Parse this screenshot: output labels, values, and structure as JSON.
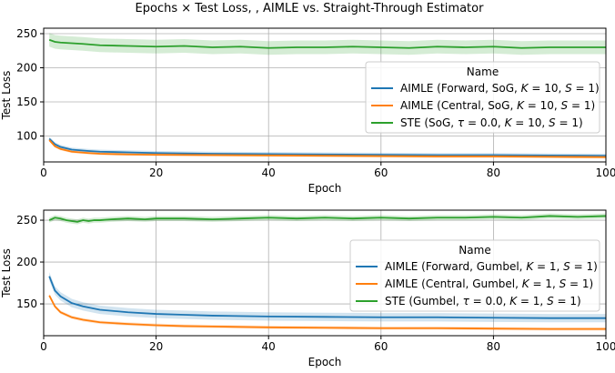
{
  "figure": {
    "title": "Epochs × Test Loss, , AIMLE vs. Straight-Through Estimator"
  },
  "colors": {
    "aimle_forward": "#1f77b4",
    "aimle_central": "#ff7f0e",
    "ste": "#2ca02c",
    "grid": "#b0b0b0"
  },
  "chart_data": [
    {
      "type": "line",
      "xlabel": "Epoch",
      "ylabel": "Test Loss",
      "xlim": [
        0,
        100
      ],
      "ylim": [
        62,
        258
      ],
      "xticks": [
        0,
        20,
        40,
        60,
        80,
        100
      ],
      "yticks": [
        100,
        150,
        200,
        250
      ],
      "grid": true,
      "legend": {
        "title": "Name",
        "placement": "center-right"
      },
      "series": [
        {
          "name": "AIMLE (Forward, SoG, K = 10, S = 1)",
          "x": [
            1,
            2,
            3,
            5,
            8,
            10,
            15,
            20,
            30,
            40,
            50,
            60,
            70,
            80,
            90,
            100
          ],
          "y": [
            96,
            88,
            84,
            80,
            78,
            77,
            76,
            75,
            74,
            73.5,
            73,
            72.5,
            72,
            72,
            71.5,
            71
          ],
          "band": 3
        },
        {
          "name": "AIMLE (Central, SoG, K = 10, S = 1)",
          "x": [
            1,
            2,
            3,
            5,
            8,
            10,
            15,
            20,
            30,
            40,
            50,
            60,
            70,
            80,
            90,
            100
          ],
          "y": [
            94,
            85,
            81,
            77,
            75,
            74,
            73,
            72.5,
            72,
            71.5,
            71,
            70.5,
            70,
            70,
            69.5,
            69
          ],
          "band": 2
        },
        {
          "name": "STE (SoG, τ = 0.0, K = 10, S = 1)",
          "x": [
            1,
            2,
            3,
            5,
            7,
            10,
            15,
            20,
            25,
            30,
            35,
            40,
            45,
            50,
            55,
            60,
            65,
            70,
            75,
            80,
            85,
            90,
            95,
            100
          ],
          "y": [
            241,
            238,
            237,
            236,
            235,
            233,
            232,
            231,
            232,
            230,
            231,
            229,
            230,
            230,
            231,
            230,
            229,
            231,
            230,
            231,
            229,
            230,
            230,
            230
          ],
          "band": 10
        }
      ]
    },
    {
      "type": "line",
      "xlabel": "Epoch",
      "ylabel": "Test Loss",
      "xlim": [
        0,
        100
      ],
      "ylim": [
        112,
        262
      ],
      "xticks": [
        0,
        20,
        40,
        60,
        80,
        100
      ],
      "yticks": [
        150,
        200,
        250
      ],
      "grid": true,
      "legend": {
        "title": "Name",
        "placement": "center-right"
      },
      "series": [
        {
          "name": "AIMLE (Forward, Gumbel, K = 1, S = 1)",
          "x": [
            1,
            2,
            3,
            5,
            7,
            10,
            15,
            20,
            25,
            30,
            40,
            50,
            60,
            70,
            80,
            90,
            100
          ],
          "y": [
            183,
            166,
            159,
            151,
            147,
            143,
            140,
            138,
            137,
            136,
            135,
            134.5,
            134,
            134,
            133.5,
            133,
            133
          ],
          "band": 5
        },
        {
          "name": "AIMLE (Central, Gumbel, K = 1, S = 1)",
          "x": [
            1,
            2,
            3,
            5,
            7,
            10,
            15,
            20,
            25,
            30,
            40,
            50,
            60,
            70,
            80,
            90,
            100
          ],
          "y": [
            160,
            147,
            140,
            134,
            131,
            128,
            126,
            124.5,
            123.5,
            123,
            122,
            121.5,
            121,
            121,
            120.5,
            120,
            120
          ],
          "band": 2
        },
        {
          "name": "STE (Gumbel, τ = 0.0, K = 1, S = 1)",
          "x": [
            1,
            2,
            3,
            4,
            5,
            6,
            7,
            8,
            9,
            10,
            12,
            15,
            18,
            20,
            25,
            30,
            35,
            40,
            45,
            50,
            55,
            60,
            65,
            70,
            75,
            80,
            85,
            90,
            95,
            100
          ],
          "y": [
            250,
            253,
            252,
            250,
            249,
            248,
            250,
            249,
            250,
            250,
            251,
            252,
            251,
            252,
            252,
            251,
            252,
            253,
            252,
            253,
            252,
            253,
            252,
            253,
            253,
            254,
            253,
            255,
            254,
            255
          ],
          "band": 3
        }
      ]
    }
  ]
}
